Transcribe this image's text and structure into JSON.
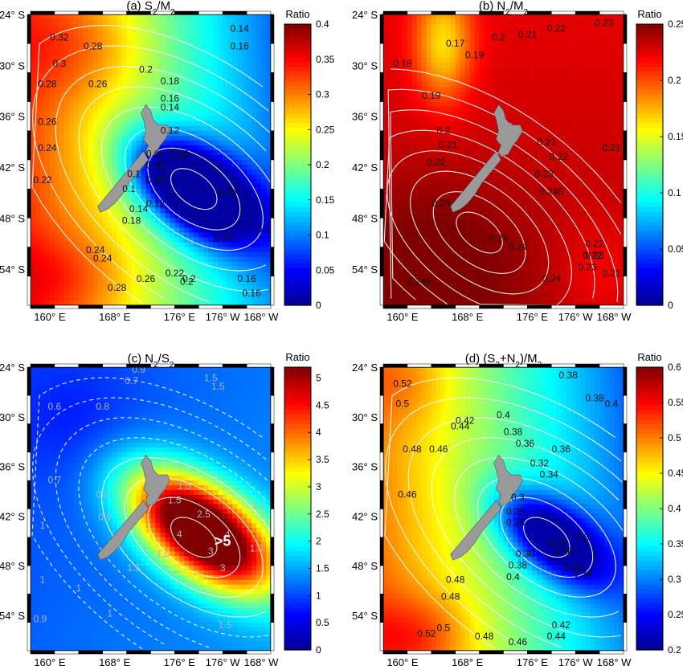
{
  "panels": [
    {
      "id": "a",
      "title_parts": [
        [
          "(a) S",
          "n"
        ],
        [
          "2",
          "sub"
        ],
        [
          "/M",
          "n"
        ],
        [
          "2",
          "sub"
        ]
      ],
      "colorbar": {
        "title": "Ratio",
        "ticks": [
          "0",
          "0.05",
          "0.1",
          "0.15",
          "0.2",
          "0.25",
          "0.3",
          "0.35",
          "0.4"
        ],
        "min": 0,
        "max": 0.4
      },
      "contour_labels": [
        "0.32",
        "0.3",
        "0.28",
        "0.28",
        "0.26",
        "0.26",
        "0.24",
        "0.24",
        "0.22",
        "0.22",
        "0.2",
        "0.2",
        "0.18",
        "0.18",
        "0.16",
        "0.16",
        "0.16",
        "0.14",
        "0.14",
        "0.14",
        "0.12",
        "0.12",
        "0.1",
        "0.1",
        "0.1",
        "0.08",
        "0.08",
        "0.06",
        "0.06",
        "0.04",
        "0.24",
        "0.26",
        "0.28",
        "0.22",
        "0.2",
        "0.16"
      ]
    },
    {
      "id": "b",
      "title_parts": [
        [
          "(b) N",
          "n"
        ],
        [
          "2",
          "sub"
        ],
        [
          "/M",
          "n"
        ],
        [
          "2",
          "sub"
        ]
      ],
      "colorbar": {
        "title": "Ratio",
        "ticks": [
          "0",
          "0.05",
          "0.1",
          "0.15",
          "0.2",
          "0.25"
        ],
        "min": 0,
        "max": 0.25
      },
      "contour_labels": [
        "0.18",
        "0.17",
        "0.19",
        "0.2",
        "0.21",
        "0.22",
        "0.23",
        "0.19",
        "0.2",
        "0.21",
        "0.22",
        "0.23",
        "0.21",
        "0.22",
        "0.23",
        "0.245",
        "0.24",
        "0.24",
        "0.245",
        "0.24",
        "0.23",
        "0.22",
        "0.21",
        "0.23",
        "0.22",
        "0.21"
      ]
    },
    {
      "id": "c",
      "title_parts": [
        [
          "(c) N",
          "n"
        ],
        [
          "2",
          "sub"
        ],
        [
          "/S",
          "n"
        ],
        [
          "2",
          "sub"
        ]
      ],
      "colorbar": {
        "title": "Ratio",
        "ticks": [
          "0",
          "0.5",
          "1",
          "1.5",
          "2",
          "2.5",
          "3",
          "3.5",
          "4",
          "4.5",
          "5"
        ],
        "min": 0,
        "max": 5.2
      },
      "contour_labels": [
        "0.6",
        "0.7",
        "0.8",
        "0.9",
        "1",
        "1",
        "1.5",
        "1.5",
        "1.5",
        "1.5",
        "1.5",
        "1.5",
        "1",
        "1",
        "0.9",
        "0.8",
        "0.9",
        "0.7",
        "1.5",
        "2.5",
        "3",
        "4",
        "4",
        "3",
        "1.5",
        "1.5"
      ],
      "callout": ">5"
    },
    {
      "id": "d",
      "title_parts": [
        [
          "(d) (S",
          "n"
        ],
        [
          "2",
          "sub"
        ],
        [
          "+N",
          "n"
        ],
        [
          "2",
          "sub"
        ],
        [
          ")/M",
          "n"
        ],
        [
          "2",
          "sub"
        ]
      ],
      "colorbar": {
        "title": "Ratio",
        "ticks": [
          "0.2",
          "0.25",
          "0.3",
          "0.35",
          "0.4",
          "0.45",
          "0.5",
          "0.55",
          "0.6"
        ],
        "min": 0.2,
        "max": 0.6
      },
      "contour_labels": [
        "0.52",
        "0.5",
        "0.48",
        "0.46",
        "0.46",
        "0.44",
        "0.42",
        "0.4",
        "0.38",
        "0.38",
        "0.36",
        "0.38",
        "0.4",
        "0.36",
        "0.34",
        "0.32",
        "0.3",
        "0.28",
        "0.28",
        "0.26",
        "0.26",
        "0.3",
        "0.32",
        "0.34",
        "0.36",
        "0.38",
        "0.4",
        "0.42",
        "0.44",
        "0.46",
        "0.48",
        "0.48",
        "0.5",
        "0.52",
        "0.48"
      ]
    }
  ],
  "axes": {
    "lat_ticks": [
      "24° S",
      "30° S",
      "36° S",
      "42° S",
      "48° S",
      "54° S"
    ],
    "lon_ticks": [
      "160° E",
      "168° E",
      "176° E",
      "176° W",
      "168° W"
    ]
  },
  "colors": {
    "jet": [
      "#00008f",
      "#0000ff",
      "#0080ff",
      "#00ffff",
      "#80ff80",
      "#ffff00",
      "#ff8000",
      "#ff0000",
      "#800000"
    ],
    "land": "#9a9a9a",
    "contour": "#ffffff"
  }
}
